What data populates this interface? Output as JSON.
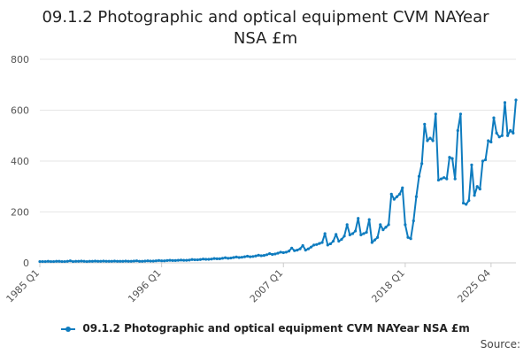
{
  "page": {
    "title_line1": "09.1.2 Photographic and optical equipment CVM NAYear",
    "title_line2": "NSA £m",
    "source_label": "Source:"
  },
  "colors": {
    "series": "#0F7CBF",
    "grid": "#e6e6e6",
    "axis_text": "#555555"
  },
  "chart_data": {
    "type": "line",
    "title": "09.1.2 Photographic and optical equipment CVM NAYear NSA £m",
    "xlabel": "",
    "ylabel": "",
    "ylim": [
      0,
      800
    ],
    "yticks": [
      0,
      200,
      400,
      600,
      800
    ],
    "x_tick_labels": [
      "1985 Q1",
      "1996 Q1",
      "2007 Q1",
      "2018 Q1",
      "2025 Q4"
    ],
    "x_tick_indices": [
      0,
      44,
      88,
      132,
      163
    ],
    "grid": true,
    "legend_position": "bottom",
    "series": [
      {
        "name": "09.1.2 Photographic and optical equipment CVM NAYear NSA £m",
        "start": "1985 Q1",
        "end": "2025 Q4",
        "frequency": "quarterly",
        "values": [
          5,
          5,
          5,
          6,
          5,
          5,
          6,
          6,
          5,
          5,
          6,
          8,
          5,
          6,
          6,
          7,
          6,
          5,
          6,
          6,
          7,
          6,
          6,
          7,
          6,
          6,
          6,
          7,
          6,
          6,
          6,
          7,
          6,
          6,
          7,
          8,
          6,
          6,
          7,
          8,
          7,
          7,
          8,
          9,
          8,
          8,
          9,
          10,
          9,
          9,
          10,
          11,
          10,
          10,
          11,
          13,
          12,
          12,
          13,
          15,
          14,
          14,
          15,
          17,
          16,
          16,
          18,
          20,
          18,
          19,
          21,
          23,
          21,
          22,
          24,
          26,
          24,
          25,
          27,
          30,
          28,
          29,
          32,
          36,
          33,
          35,
          38,
          42,
          40,
          42,
          46,
          58,
          48,
          50,
          55,
          68,
          50,
          55,
          62,
          70,
          72,
          76,
          80,
          115,
          70,
          75,
          85,
          112,
          85,
          92,
          105,
          150,
          110,
          115,
          125,
          175,
          110,
          115,
          120,
          170,
          80,
          90,
          100,
          150,
          130,
          140,
          150,
          270,
          250,
          260,
          270,
          295,
          150,
          100,
          95,
          165,
          260,
          340,
          390,
          545,
          480,
          490,
          480,
          585,
          325,
          330,
          335,
          330,
          415,
          410,
          330,
          520,
          585,
          235,
          230,
          245,
          385,
          265,
          300,
          290,
          400,
          405,
          480,
          475,
          570,
          510,
          495,
          500,
          630,
          500,
          520,
          510,
          640
        ]
      }
    ]
  }
}
